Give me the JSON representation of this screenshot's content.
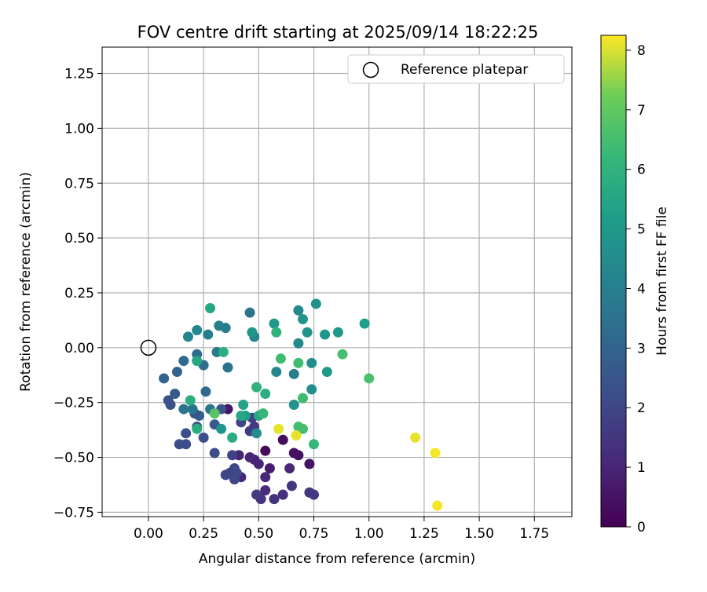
{
  "chart_data": {
    "type": "scatter",
    "title": "FOV centre drift starting at 2025/09/14 18:22:25",
    "xlabel": "Angular distance from reference (arcmin)",
    "ylabel": "Rotation from reference (arcmin)",
    "xlim": [
      -0.21,
      1.92
    ],
    "ylim": [
      -0.77,
      1.37
    ],
    "xticks": [
      0.0,
      0.25,
      0.5,
      0.75,
      1.0,
      1.25,
      1.5,
      1.75
    ],
    "xtick_labels": [
      "0.00",
      "0.25",
      "0.50",
      "0.75",
      "1.00",
      "1.25",
      "1.50",
      "1.75"
    ],
    "yticks": [
      -0.75,
      -0.5,
      -0.25,
      0.0,
      0.25,
      0.5,
      0.75,
      1.0,
      1.25
    ],
    "ytick_labels": [
      "−0.75",
      "−0.50",
      "−0.25",
      "0.00",
      "0.25",
      "0.50",
      "0.75",
      "1.00",
      "1.25"
    ],
    "grid": true,
    "legend": {
      "placement": "top-right",
      "entries": [
        "Reference platepar"
      ]
    },
    "reference_point": {
      "x": 0.0,
      "y": 0.0,
      "label": "Reference platepar"
    },
    "colorbar": {
      "label": "Hours from first FF file",
      "colormap": "viridis",
      "range": [
        0,
        8.25
      ],
      "ticks": [
        0,
        1,
        2,
        3,
        4,
        5,
        6,
        7,
        8
      ],
      "tick_labels": [
        "0",
        "1",
        "2",
        "3",
        "4",
        "5",
        "6",
        "7",
        "8"
      ]
    },
    "points": [
      {
        "x": 0.36,
        "y": -0.28,
        "t": 0.6
      },
      {
        "x": 0.53,
        "y": -0.47,
        "t": 0.3
      },
      {
        "x": 0.61,
        "y": -0.42,
        "t": 0.3
      },
      {
        "x": 0.66,
        "y": -0.48,
        "t": 0.4
      },
      {
        "x": 0.68,
        "y": -0.49,
        "t": 0.4
      },
      {
        "x": 0.73,
        "y": -0.53,
        "t": 0.5
      },
      {
        "x": 0.55,
        "y": -0.55,
        "t": 0.8
      },
      {
        "x": 0.48,
        "y": -0.51,
        "t": 0.9
      },
      {
        "x": 0.46,
        "y": -0.5,
        "t": 1.0
      },
      {
        "x": 0.41,
        "y": -0.49,
        "t": 1.0
      },
      {
        "x": 0.5,
        "y": -0.53,
        "t": 1.0
      },
      {
        "x": 0.42,
        "y": -0.59,
        "t": 1.1
      },
      {
        "x": 0.53,
        "y": -0.59,
        "t": 1.1
      },
      {
        "x": 0.64,
        "y": -0.55,
        "t": 1.1
      },
      {
        "x": 0.53,
        "y": -0.65,
        "t": 1.2
      },
      {
        "x": 0.51,
        "y": -0.69,
        "t": 1.4
      },
      {
        "x": 0.57,
        "y": -0.69,
        "t": 1.4
      },
      {
        "x": 0.61,
        "y": -0.67,
        "t": 1.3
      },
      {
        "x": 0.65,
        "y": -0.63,
        "t": 1.5
      },
      {
        "x": 0.73,
        "y": -0.66,
        "t": 1.5
      },
      {
        "x": 0.75,
        "y": -0.67,
        "t": 1.5
      },
      {
        "x": 0.49,
        "y": -0.67,
        "t": 1.6
      },
      {
        "x": 0.46,
        "y": -0.38,
        "t": 1.7
      },
      {
        "x": 0.47,
        "y": -0.32,
        "t": 1.8
      },
      {
        "x": 0.48,
        "y": -0.36,
        "t": 1.6
      },
      {
        "x": 0.42,
        "y": -0.34,
        "t": 1.9
      },
      {
        "x": 0.38,
        "y": -0.49,
        "t": 1.9
      },
      {
        "x": 0.39,
        "y": -0.55,
        "t": 2.0
      },
      {
        "x": 0.35,
        "y": -0.58,
        "t": 2.0
      },
      {
        "x": 0.37,
        "y": -0.57,
        "t": 1.9
      },
      {
        "x": 0.4,
        "y": -0.57,
        "t": 2.0
      },
      {
        "x": 0.39,
        "y": -0.6,
        "t": 2.0
      },
      {
        "x": 0.3,
        "y": -0.48,
        "t": 2.2
      },
      {
        "x": 0.25,
        "y": -0.41,
        "t": 2.2
      },
      {
        "x": 0.17,
        "y": -0.44,
        "t": 2.2
      },
      {
        "x": 0.14,
        "y": -0.44,
        "t": 2.2
      },
      {
        "x": 0.17,
        "y": -0.39,
        "t": 2.3
      },
      {
        "x": 0.22,
        "y": -0.36,
        "t": 2.6
      },
      {
        "x": 0.3,
        "y": -0.35,
        "t": 2.6
      },
      {
        "x": 0.33,
        "y": -0.28,
        "t": 2.4
      },
      {
        "x": 0.1,
        "y": -0.26,
        "t": 2.4
      },
      {
        "x": 0.09,
        "y": -0.24,
        "t": 2.4
      },
      {
        "x": 0.12,
        "y": -0.21,
        "t": 2.6
      },
      {
        "x": 0.07,
        "y": -0.14,
        "t": 3.0
      },
      {
        "x": 0.13,
        "y": -0.11,
        "t": 3.0
      },
      {
        "x": 0.16,
        "y": -0.06,
        "t": 3.2
      },
      {
        "x": 0.25,
        "y": -0.08,
        "t": 3.3
      },
      {
        "x": 0.23,
        "y": -0.31,
        "t": 2.8
      },
      {
        "x": 0.21,
        "y": -0.3,
        "t": 2.5
      },
      {
        "x": 0.16,
        "y": -0.28,
        "t": 3.6
      },
      {
        "x": 0.2,
        "y": -0.28,
        "t": 3.6
      },
      {
        "x": 0.26,
        "y": -0.2,
        "t": 3.2
      },
      {
        "x": 0.28,
        "y": -0.28,
        "t": 3.7
      },
      {
        "x": 0.22,
        "y": -0.03,
        "t": 3.3
      },
      {
        "x": 0.36,
        "y": -0.09,
        "t": 3.6
      },
      {
        "x": 0.31,
        "y": -0.02,
        "t": 3.8
      },
      {
        "x": 0.18,
        "y": 0.05,
        "t": 4.2
      },
      {
        "x": 0.22,
        "y": 0.08,
        "t": 4.3
      },
      {
        "x": 0.27,
        "y": 0.06,
        "t": 4.0
      },
      {
        "x": 0.32,
        "y": 0.1,
        "t": 4.0
      },
      {
        "x": 0.35,
        "y": 0.09,
        "t": 3.9
      },
      {
        "x": 0.46,
        "y": 0.16,
        "t": 3.6
      },
      {
        "x": 0.48,
        "y": 0.05,
        "t": 4.2
      },
      {
        "x": 0.47,
        "y": 0.07,
        "t": 4.8
      },
      {
        "x": 0.57,
        "y": 0.11,
        "t": 5.0
      },
      {
        "x": 0.58,
        "y": -0.11,
        "t": 4.3
      },
      {
        "x": 0.66,
        "y": -0.12,
        "t": 4.0
      },
      {
        "x": 0.68,
        "y": 0.02,
        "t": 4.4
      },
      {
        "x": 0.68,
        "y": 0.17,
        "t": 4.4
      },
      {
        "x": 0.7,
        "y": 0.13,
        "t": 4.8
      },
      {
        "x": 0.72,
        "y": 0.07,
        "t": 4.8
      },
      {
        "x": 0.76,
        "y": 0.2,
        "t": 4.7
      },
      {
        "x": 0.74,
        "y": -0.07,
        "t": 4.6
      },
      {
        "x": 0.8,
        "y": 0.06,
        "t": 4.9
      },
      {
        "x": 0.81,
        "y": -0.11,
        "t": 5.0
      },
      {
        "x": 0.86,
        "y": 0.07,
        "t": 5.0
      },
      {
        "x": 0.98,
        "y": 0.11,
        "t": 5.2
      },
      {
        "x": 0.74,
        "y": -0.19,
        "t": 4.6
      },
      {
        "x": 0.66,
        "y": -0.26,
        "t": 4.8
      },
      {
        "x": 0.28,
        "y": 0.18,
        "t": 5.5
      },
      {
        "x": 0.49,
        "y": -0.39,
        "t": 4.5
      },
      {
        "x": 0.33,
        "y": -0.37,
        "t": 4.9
      },
      {
        "x": 0.44,
        "y": -0.31,
        "t": 5.2
      },
      {
        "x": 0.42,
        "y": -0.31,
        "t": 5.5
      },
      {
        "x": 0.43,
        "y": -0.26,
        "t": 5.4
      },
      {
        "x": 0.5,
        "y": -0.31,
        "t": 5.6
      },
      {
        "x": 0.38,
        "y": -0.41,
        "t": 5.8
      },
      {
        "x": 0.22,
        "y": -0.37,
        "t": 5.8
      },
      {
        "x": 0.19,
        "y": -0.24,
        "t": 5.8
      },
      {
        "x": 0.22,
        "y": -0.06,
        "t": 5.6
      },
      {
        "x": 0.34,
        "y": -0.02,
        "t": 5.8
      },
      {
        "x": 0.58,
        "y": 0.07,
        "t": 6.0
      },
      {
        "x": 0.53,
        "y": -0.21,
        "t": 5.7
      },
      {
        "x": 0.49,
        "y": -0.18,
        "t": 6.0
      },
      {
        "x": 0.52,
        "y": -0.3,
        "t": 6.2
      },
      {
        "x": 0.6,
        "y": -0.05,
        "t": 6.4
      },
      {
        "x": 0.68,
        "y": -0.07,
        "t": 6.4
      },
      {
        "x": 0.7,
        "y": -0.23,
        "t": 6.4
      },
      {
        "x": 0.68,
        "y": -0.36,
        "t": 6.5
      },
      {
        "x": 0.7,
        "y": -0.37,
        "t": 6.5
      },
      {
        "x": 0.75,
        "y": -0.44,
        "t": 6.2
      },
      {
        "x": 0.88,
        "y": -0.03,
        "t": 6.5
      },
      {
        "x": 1.0,
        "y": -0.14,
        "t": 6.6
      },
      {
        "x": 0.3,
        "y": -0.3,
        "t": 6.8
      },
      {
        "x": 0.59,
        "y": -0.37,
        "t": 8.1
      },
      {
        "x": 0.67,
        "y": -0.4,
        "t": 8.1
      },
      {
        "x": 1.21,
        "y": -0.41,
        "t": 8.1
      },
      {
        "x": 1.3,
        "y": -0.48,
        "t": 8.2
      },
      {
        "x": 1.31,
        "y": -0.72,
        "t": 8.2
      }
    ]
  }
}
